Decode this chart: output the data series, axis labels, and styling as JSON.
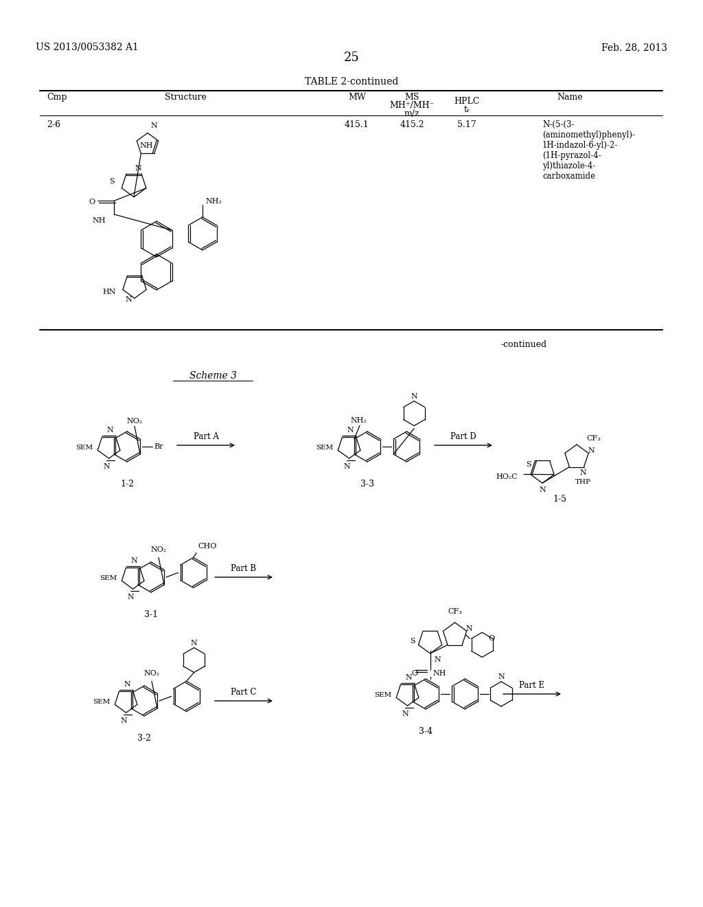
{
  "background_color": "#ffffff",
  "page_header_left": "US 2013/0053382 A1",
  "page_header_right": "Feb. 28, 2013",
  "page_number": "25",
  "table_title": "TABLE 2-continued",
  "table_row": {
    "cmp": "2-6",
    "mw": "415.1",
    "mz": "415.2",
    "hplc": "5.17",
    "name": "N-(5-(3-\n(aminomethyl)phenyl)-\n1H-indazol-6-yl)-2-\n(1H-pyrazol-4-\nyl)thiazole-4-\ncarboxamide"
  },
  "continued_label": "-continued"
}
